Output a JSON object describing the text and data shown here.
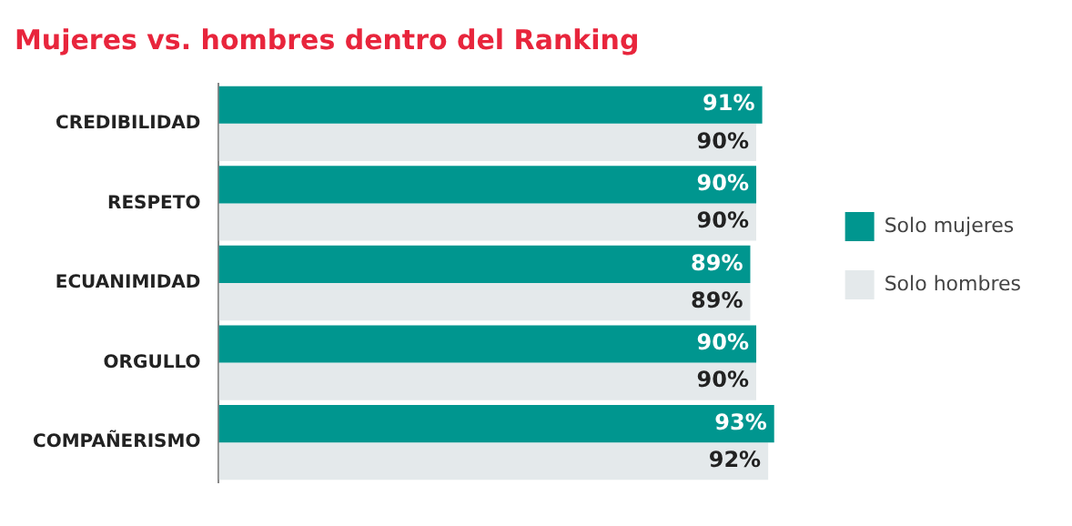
{
  "chart_data": {
    "type": "bar",
    "orientation": "horizontal",
    "title": "Mujeres vs. hombres dentro del Ranking",
    "categories": [
      "CREDIBILIDAD",
      "RESPETO",
      "ECUANIMIDAD",
      "ORGULLO",
      "COMPAÑERISMO"
    ],
    "series": [
      {
        "name": "Solo mujeres",
        "color": "#00968f",
        "values": [
          91,
          90,
          89,
          90,
          93
        ],
        "value_labels": [
          "91%",
          "90%",
          "89%",
          "90%",
          "93%"
        ]
      },
      {
        "name": "Solo hombres",
        "color": "#e4e9eb",
        "values": [
          90,
          90,
          89,
          90,
          92
        ],
        "value_labels": [
          "90%",
          "90%",
          "89%",
          "90%",
          "92%"
        ]
      }
    ],
    "tick_labels": "y",
    "legend": "right"
  }
}
